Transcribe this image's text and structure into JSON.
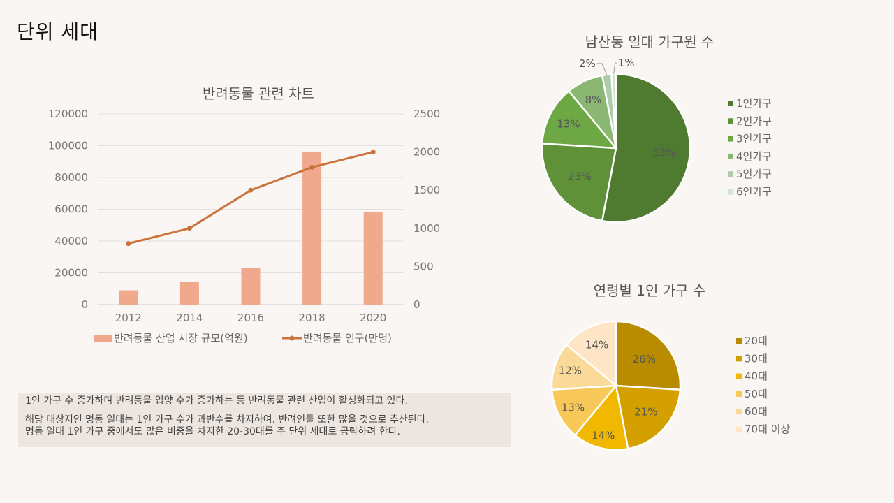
{
  "page": {
    "title": "단위 세대"
  },
  "note": {
    "line1": "1인 가구 수 증가하며 반려동물 입양 수가 증가하는 등 반려동물 관련 산업이 활성화되고 있다.",
    "line2": "해당 대상지인 명동 일대는 1인 가구 수가 과반수를 차지하여. 반려인들 또한 많을 것으로 추산된다.",
    "line3": "명동 일대 1인 가구 중에서도 많은 비중을 차지한 20-30대를 주 단위 세대로 공략하려 한다."
  },
  "chart_data": [
    {
      "type": "bar+line",
      "title": "반려동물 관련 차트",
      "categories": [
        "2012",
        "2014",
        "2016",
        "2018",
        "2020"
      ],
      "series": [
        {
          "name": "반려동물 산업 시장 규모(억원)",
          "type": "bar",
          "axis": "left",
          "color": "#f0a98c",
          "values": [
            9000,
            14300,
            23000,
            96300,
            58100
          ]
        },
        {
          "name": "반려동물 인구(만명)",
          "type": "line",
          "axis": "right",
          "color": "#c8743c",
          "values": [
            800,
            1000,
            1500,
            1800,
            2000
          ]
        }
      ],
      "y_left": {
        "min": 0,
        "max": 120000,
        "ticks": [
          0,
          20000,
          40000,
          60000,
          80000,
          100000,
          120000
        ]
      },
      "y_right": {
        "min": 0,
        "max": 2500,
        "ticks": [
          0,
          500,
          1000,
          1500,
          2000,
          2500
        ]
      },
      "grid": true,
      "legend": "bottom"
    },
    {
      "type": "pie",
      "title": "남산동 일대 가구원 수",
      "labels": [
        "1인가구",
        "2인가구",
        "3인가구",
        "4인가구",
        "5인가구",
        "6인가구"
      ],
      "values": [
        53,
        23,
        13,
        8,
        2,
        1
      ],
      "display": [
        "53%",
        "23%",
        "13%",
        "8%",
        "2%",
        "1%"
      ],
      "colors": [
        "#4f7b30",
        "#5e9138",
        "#6ea845",
        "#8ab873",
        "#aeccaa",
        "#d2e3d0"
      ],
      "legend": "right"
    },
    {
      "type": "pie",
      "title": "연령별 1인 가구 수",
      "labels": [
        "20대",
        "30대",
        "40대",
        "50대",
        "60대",
        "70대 이상"
      ],
      "values": [
        26,
        21,
        14,
        13,
        12,
        14
      ],
      "display": [
        "26%",
        "21%",
        "14%",
        "13%",
        "12%",
        "14%"
      ],
      "colors": [
        "#b88b00",
        "#d4a000",
        "#f0b800",
        "#f8c959",
        "#fbd998",
        "#fde5c5"
      ],
      "legend": "right"
    }
  ]
}
